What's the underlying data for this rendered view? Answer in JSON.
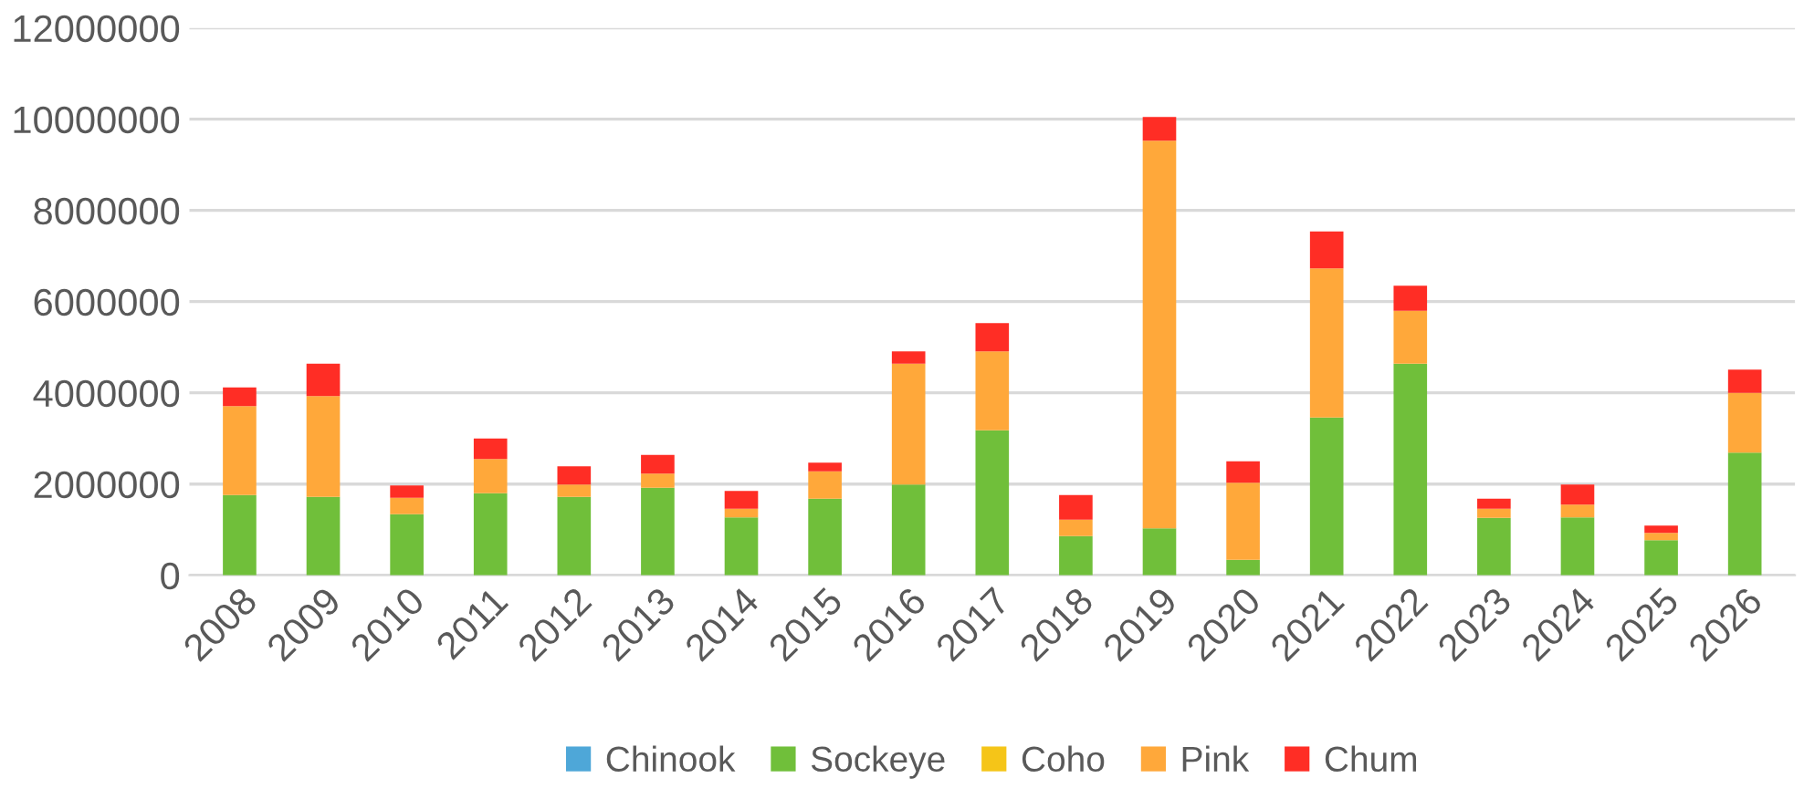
{
  "chart_data": {
    "type": "bar",
    "stacked": true,
    "categories": [
      "2008",
      "2009",
      "2010",
      "2011",
      "2012",
      "2013",
      "2014",
      "2015",
      "2016",
      "2017",
      "2018",
      "2019",
      "2020",
      "2021",
      "2022",
      "2023",
      "2024",
      "2025",
      "2026"
    ],
    "series": [
      {
        "name": "Chinook",
        "color": "#4ea7d8",
        "values": [
          0,
          0,
          0,
          0,
          0,
          0,
          0,
          0,
          0,
          0,
          0,
          0,
          0,
          0,
          0,
          0,
          0,
          0,
          0
        ]
      },
      {
        "name": "Sockeye",
        "color": "#70bf3a",
        "values": [
          1760000,
          1720000,
          1340000,
          1800000,
          1720000,
          1920000,
          1270000,
          1680000,
          1990000,
          3180000,
          860000,
          1030000,
          340000,
          3460000,
          4640000,
          1260000,
          1270000,
          770000,
          2690000
        ]
      },
      {
        "name": "Coho",
        "color": "#f5c518",
        "values": [
          0,
          0,
          0,
          0,
          0,
          0,
          0,
          0,
          0,
          0,
          0,
          0,
          0,
          0,
          0,
          0,
          0,
          0,
          0
        ]
      },
      {
        "name": "Pink",
        "color": "#ffa83a",
        "values": [
          1950000,
          2210000,
          360000,
          750000,
          270000,
          310000,
          190000,
          600000,
          2650000,
          1730000,
          360000,
          8500000,
          1690000,
          3270000,
          1160000,
          200000,
          280000,
          160000,
          1310000
        ]
      },
      {
        "name": "Chum",
        "color": "#ff2d25",
        "values": [
          410000,
          710000,
          270000,
          450000,
          400000,
          410000,
          390000,
          190000,
          270000,
          620000,
          540000,
          520000,
          470000,
          810000,
          550000,
          220000,
          440000,
          160000,
          510000
        ]
      }
    ],
    "ylim": [
      0,
      12000000
    ],
    "yticks": [
      0,
      2000000,
      4000000,
      6000000,
      8000000,
      10000000,
      12000000
    ],
    "grid": "y",
    "legend": "bottom"
  }
}
